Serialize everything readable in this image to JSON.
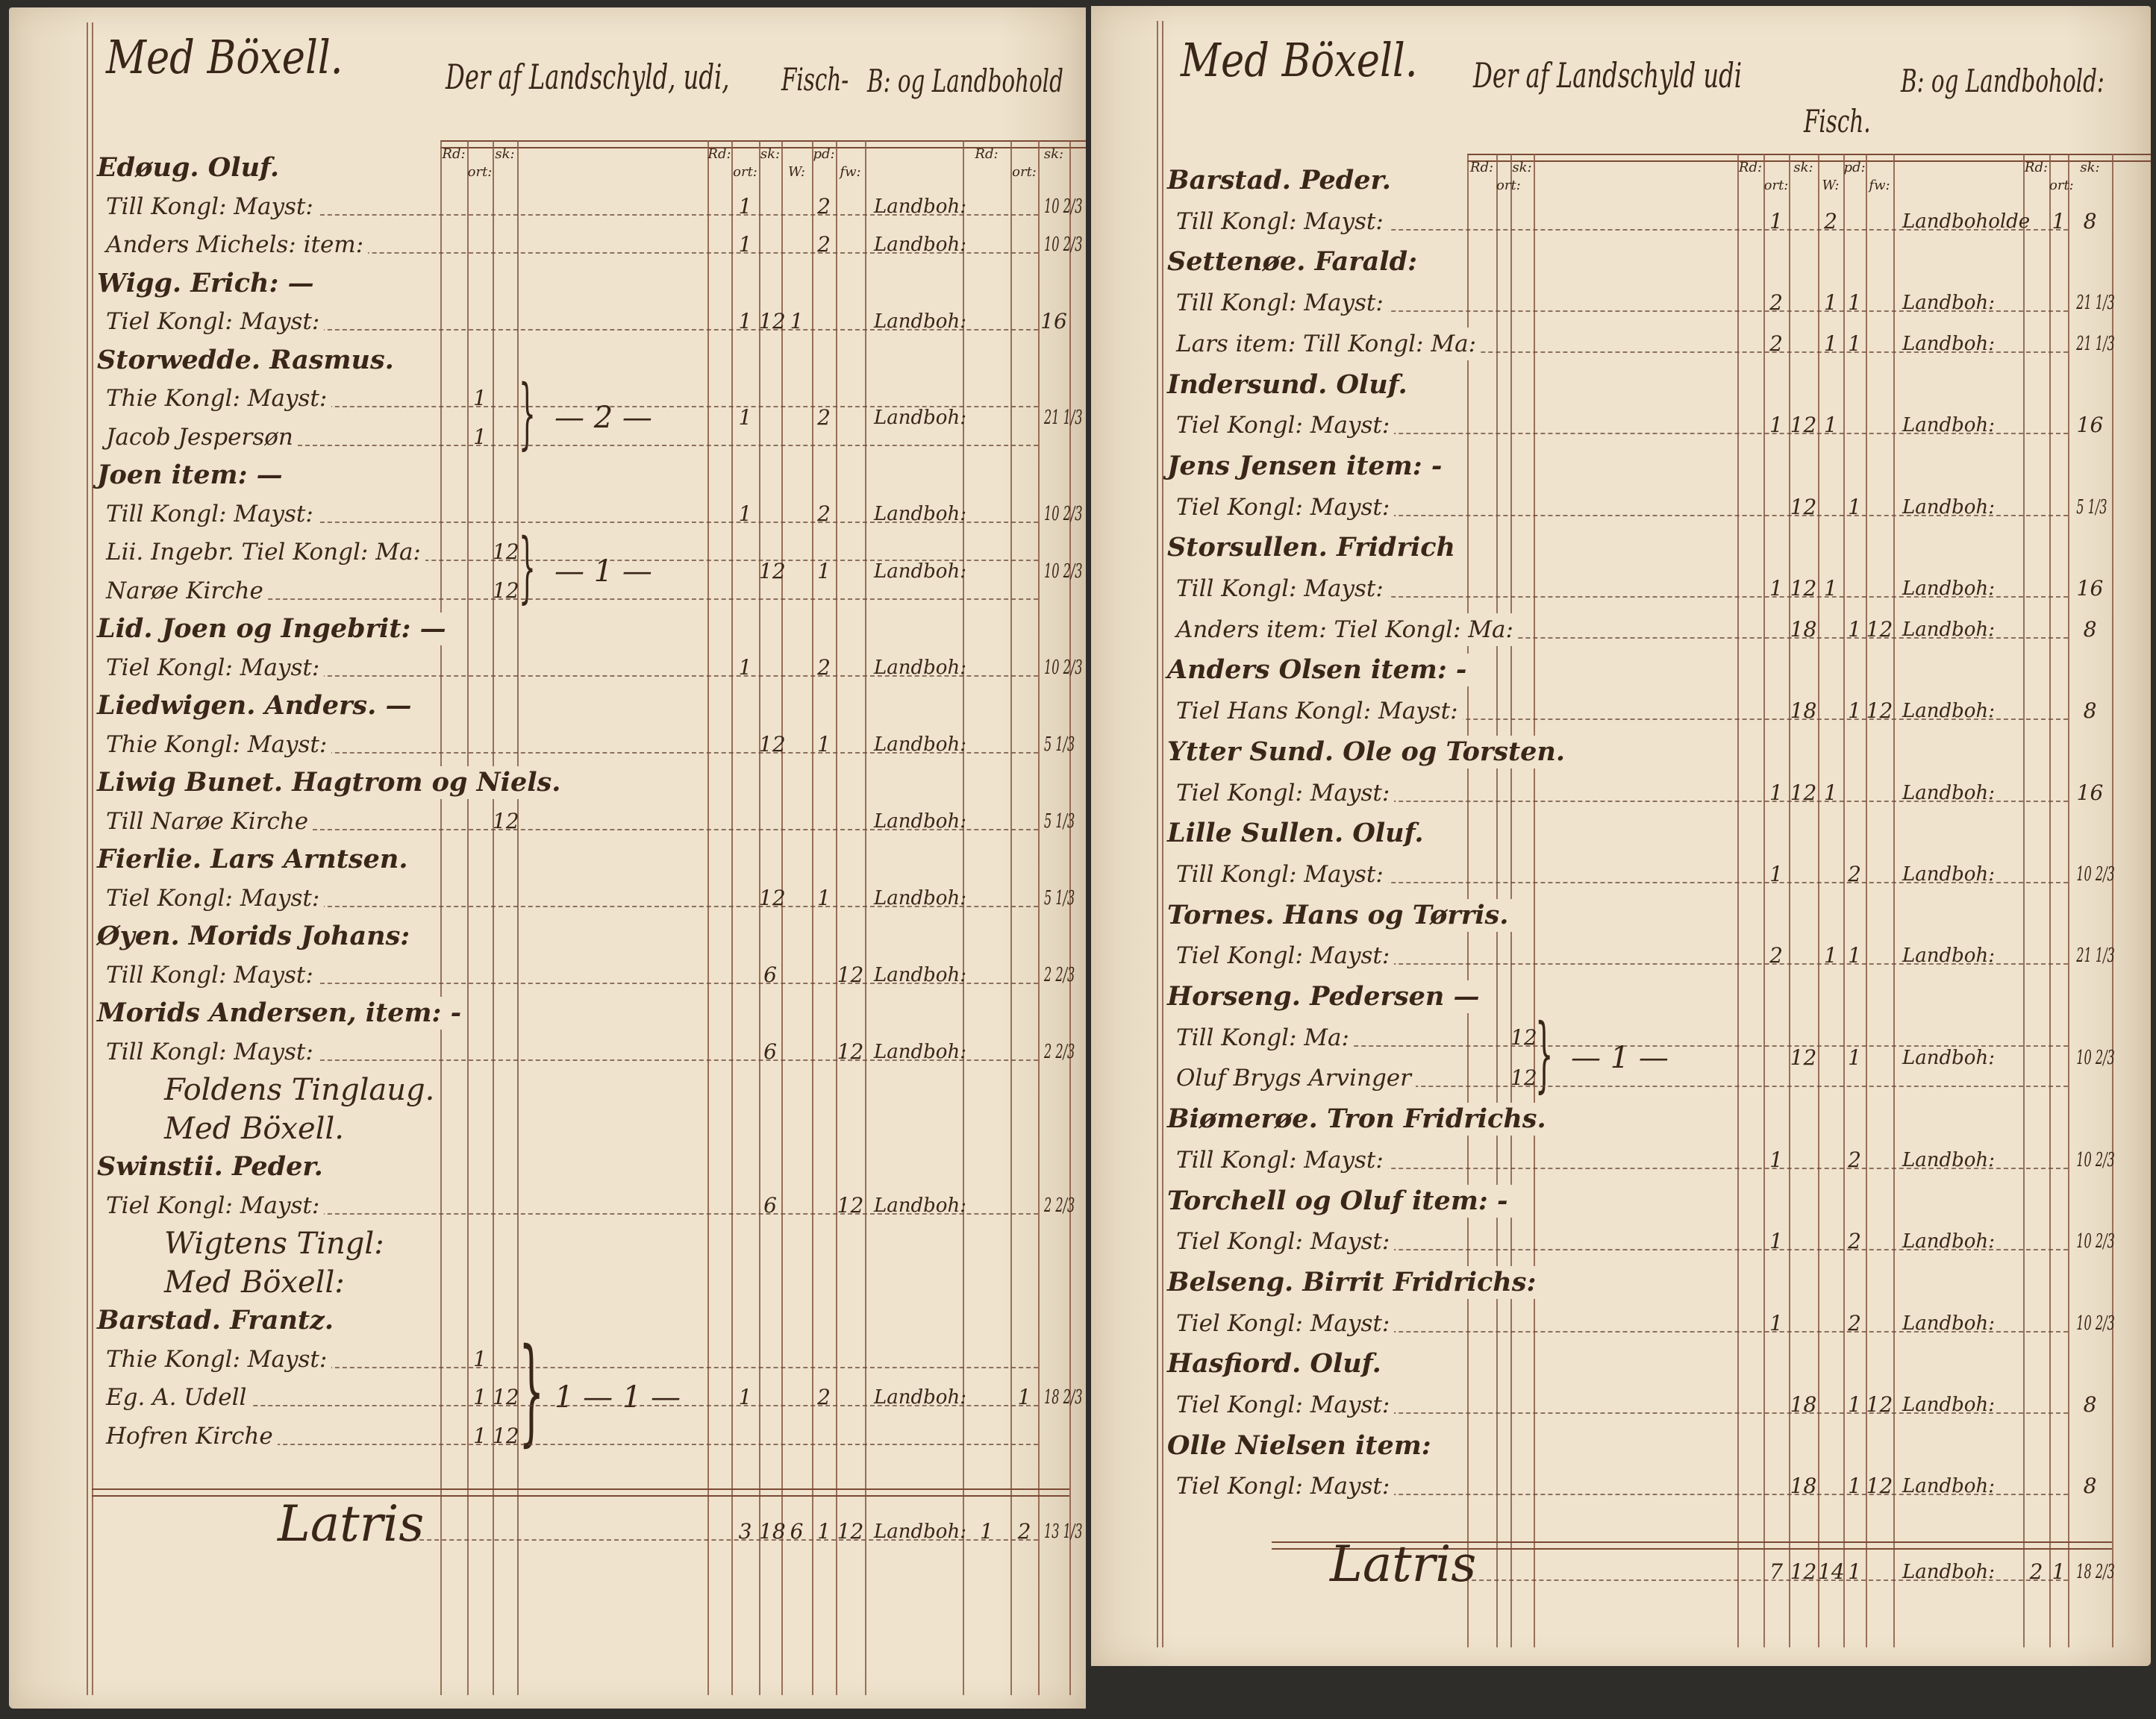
{
  "document_type": "handwritten ledger (two-page spread)",
  "colors": {
    "paper": "#efe3cd",
    "ink": "#3a2519",
    "rule": "#8a5a45",
    "background": "#2f2d2a"
  },
  "pages": [
    {
      "header": {
        "title": "Med Böxell.",
        "col_main": "Der af Landschyld, udi,",
        "col_fish": "Fisch-",
        "col_landbo": "B: og Landbohold"
      },
      "subheads": {
        "g1": [
          "Rd:",
          "ort:",
          "sk:"
        ],
        "g2": [
          "Rd:",
          "ort:",
          "sk:",
          "W:",
          "pd:",
          "fw:"
        ],
        "g3": [
          "Rd:",
          "ort:",
          "sk:"
        ]
      },
      "rows": [
        {
          "type": "place",
          "name": "Edøug. Oluf."
        },
        {
          "name": "Till Kongl: Mayst:",
          "g2": [
            "",
            "1",
            "",
            "",
            "2",
            ""
          ],
          "landbo": "Landboh:",
          "g3": [
            "",
            "",
            "10 2/3"
          ]
        },
        {
          "name": "Anders Michels: item:",
          "g2": [
            "",
            "1",
            "",
            "",
            "2",
            ""
          ],
          "landbo": "Landboh:",
          "g3": [
            "",
            "",
            "10 2/3"
          ]
        },
        {
          "type": "place",
          "name": "Wigg. Erich: —"
        },
        {
          "name": "Tiel Kongl: Mayst:",
          "g2": [
            "",
            "1",
            "12",
            "1",
            "",
            ""
          ],
          "landbo": "Landboh:",
          "g3": [
            "",
            "",
            "16"
          ]
        },
        {
          "type": "place",
          "name": "Storwedde. Rasmus."
        },
        {
          "name": "Thie Kongl: Mayst:",
          "g1": [
            "",
            "1",
            ""
          ],
          "mid": "— 2 —",
          "g2": [
            "",
            "1",
            "",
            "",
            "2",
            ""
          ],
          "landbo": "Landboh:",
          "g3": [
            "",
            "",
            "21 1/3"
          ]
        },
        {
          "name": "Jacob Jespersøn",
          "g1": [
            "",
            "1",
            ""
          ]
        },
        {
          "type": "place",
          "name": "Joen item: —"
        },
        {
          "name": "Till Kongl: Mayst:",
          "g2": [
            "",
            "1",
            "",
            "",
            "2",
            ""
          ],
          "landbo": "Landboh:",
          "g3": [
            "",
            "",
            "10 2/3"
          ]
        },
        {
          "name": "Lii. Ingebr. Tiel Kongl: Ma:",
          "g1": [
            "",
            "",
            "12"
          ],
          "mid": "— 1 —",
          "g2": [
            "",
            "",
            "12",
            "",
            "1",
            ""
          ],
          "landbo": "Landboh:",
          "g3": [
            "",
            "",
            "10 2/3"
          ]
        },
        {
          "name": "Narøe Kirche",
          "g1": [
            "",
            "",
            "12"
          ]
        },
        {
          "type": "place",
          "name": "Lid. Joen og Ingebrit: —"
        },
        {
          "name": "Tiel Kongl: Mayst:",
          "g2": [
            "",
            "1",
            "",
            "",
            "2",
            ""
          ],
          "landbo": "Landboh:",
          "g3": [
            "",
            "",
            "10 2/3"
          ]
        },
        {
          "type": "place",
          "name": "Liedwigen. Anders. —"
        },
        {
          "name": "Thie Kongl: Mayst:",
          "g2": [
            "",
            "",
            "12",
            "",
            "1",
            ""
          ],
          "landbo": "Landboh:",
          "g3": [
            "",
            "",
            "5 1/3"
          ]
        },
        {
          "type": "place",
          "name": "Liwig Bunet. Hagtrom og Niels."
        },
        {
          "name": "Till Narøe Kirche",
          "g1": [
            "",
            "",
            "12"
          ],
          "landbo": "Landboh:",
          "g3": [
            "",
            "",
            "5 1/3"
          ]
        },
        {
          "type": "place",
          "name": "Fierlie. Lars Arntsen."
        },
        {
          "name": "Tiel Kongl: Mayst:",
          "g2": [
            "",
            "",
            "12",
            "",
            "1",
            ""
          ],
          "landbo": "Landboh:",
          "g3": [
            "",
            "",
            "5 1/3"
          ]
        },
        {
          "type": "place",
          "name": "Øyen. Morids Johans:"
        },
        {
          "name": "Till Kongl: Mayst:",
          "g2": [
            "",
            "",
            "6",
            "",
            "",
            "12"
          ],
          "landbo": "Landboh:",
          "g3": [
            "",
            "",
            "2 2/3"
          ]
        },
        {
          "type": "place",
          "name": "Morids Andersen, item: -"
        },
        {
          "name": "Till Kongl: Mayst:",
          "g2": [
            "",
            "",
            "6",
            "",
            "",
            "12"
          ],
          "landbo": "Landboh:",
          "g3": [
            "",
            "",
            "2 2/3"
          ]
        },
        {
          "type": "heading",
          "name": "Foldens Tinglaug."
        },
        {
          "type": "heading",
          "name": "Med Böxell."
        },
        {
          "type": "place",
          "name": "Swinstii. Peder."
        },
        {
          "name": "Tiel Kongl: Mayst:",
          "g2": [
            "",
            "",
            "6",
            "",
            "",
            "12"
          ],
          "landbo": "Landboh:",
          "g3": [
            "",
            "",
            "2 2/3"
          ]
        },
        {
          "type": "heading",
          "name": "Wigtens Tingl:"
        },
        {
          "type": "heading",
          "name": "Med Böxell:"
        },
        {
          "type": "place",
          "name": "Barstad. Frantz."
        },
        {
          "name": "Thie Kongl: Mayst:",
          "g1": [
            "",
            "1",
            ""
          ],
          "mid": "1 — 1 —",
          "g2": [
            "",
            "1",
            "",
            "",
            "2",
            ""
          ],
          "landbo": "Landboh:",
          "g3": [
            "",
            "1",
            "18 2/3"
          ]
        },
        {
          "name": "Eg. A. Udell",
          "g1": [
            "",
            "1",
            "12"
          ]
        },
        {
          "name": "Hofren Kirche",
          "g1": [
            "",
            "1",
            "12"
          ]
        }
      ],
      "total": {
        "name": "Latris",
        "g2": [
          "",
          "3",
          "18",
          "6",
          "1",
          "12"
        ],
        "landbo": "Landboh:",
        "g3": [
          "1",
          "2",
          "13 1/3"
        ]
      }
    },
    {
      "header": {
        "title": "Med Böxell.",
        "col_main": "Der af Landschyld udi",
        "col_fish": "Fisch.",
        "col_landbo": "B: og Landbohold:"
      },
      "subheads": {
        "g1": [
          "Rd:",
          "ort:",
          "sk:"
        ],
        "g2": [
          "Rd:",
          "ort:",
          "sk:",
          "W:",
          "pd:",
          "fw:"
        ],
        "g3": [
          "Rd:",
          "ort:",
          "sk:"
        ]
      },
      "rows": [
        {
          "type": "place",
          "name": "Barstad. Peder."
        },
        {
          "name": "Till Kongl: Mayst:",
          "g2": [
            "",
            "1",
            "",
            "2",
            "",
            ""
          ],
          "landbo": "Landboholde",
          "g3": [
            "",
            "1",
            "8"
          ]
        },
        {
          "type": "place",
          "name": "Settenøe. Farald:"
        },
        {
          "name": "Till Kongl: Mayst:",
          "g2": [
            "",
            "2",
            "",
            "1",
            "1",
            ""
          ],
          "landbo": "Landboh:",
          "g3": [
            "",
            "",
            "21 1/3"
          ]
        },
        {
          "name": "Lars item: Till Kongl: Ma:",
          "g2": [
            "",
            "2",
            "",
            "1",
            "1",
            ""
          ],
          "landbo": "Landboh:",
          "g3": [
            "",
            "",
            "21 1/3"
          ]
        },
        {
          "type": "place",
          "name": "Indersund. Oluf."
        },
        {
          "name": "Tiel Kongl: Mayst:",
          "g2": [
            "",
            "1",
            "12",
            "1",
            "",
            ""
          ],
          "landbo": "Landboh:",
          "g3": [
            "",
            "",
            "16"
          ]
        },
        {
          "type": "place",
          "name": "Jens Jensen item: -"
        },
        {
          "name": "Tiel Kongl: Mayst:",
          "g2": [
            "",
            "",
            "12",
            "",
            "1",
            ""
          ],
          "landbo": "Landboh:",
          "g3": [
            "",
            "",
            "5 1/3"
          ]
        },
        {
          "type": "place",
          "name": "Storsullen. Fridrich"
        },
        {
          "name": "Till Kongl: Mayst:",
          "g2": [
            "",
            "1",
            "12",
            "1",
            "",
            ""
          ],
          "landbo": "Landboh:",
          "g3": [
            "",
            "",
            "16"
          ]
        },
        {
          "name": "Anders item: Tiel Kongl: Ma:",
          "g2": [
            "",
            "",
            "18",
            "",
            "1",
            "12"
          ],
          "landbo": "Landboh:",
          "g3": [
            "",
            "",
            "8"
          ]
        },
        {
          "type": "place",
          "name": "Anders Olsen item: -"
        },
        {
          "name": "Tiel Hans Kongl: Mayst:",
          "g2": [
            "",
            "",
            "18",
            "",
            "1",
            "12"
          ],
          "landbo": "Landboh:",
          "g3": [
            "",
            "",
            "8"
          ]
        },
        {
          "type": "place",
          "name": "Ytter Sund. Ole og Torsten."
        },
        {
          "name": "Tiel Kongl: Mayst:",
          "g2": [
            "",
            "1",
            "12",
            "1",
            "",
            ""
          ],
          "landbo": "Landboh:",
          "g3": [
            "",
            "",
            "16"
          ]
        },
        {
          "type": "place",
          "name": "Lille Sullen. Oluf."
        },
        {
          "name": "Till Kongl: Mayst:",
          "g2": [
            "",
            "1",
            "",
            "",
            "2",
            ""
          ],
          "landbo": "Landboh:",
          "g3": [
            "",
            "",
            "10 2/3"
          ]
        },
        {
          "type": "place",
          "name": "Tornes. Hans og Tørris."
        },
        {
          "name": "Tiel Kongl: Mayst:",
          "g2": [
            "",
            "2",
            "",
            "1",
            "1",
            ""
          ],
          "landbo": "Landboh:",
          "g3": [
            "",
            "",
            "21 1/3"
          ]
        },
        {
          "type": "place",
          "name": "Horseng. Pedersen —"
        },
        {
          "name": "Till Kongl: Ma:",
          "g1": [
            "",
            "",
            "12"
          ],
          "mid": "— 1 —",
          "g2": [
            "",
            "",
            "12",
            "",
            "1",
            ""
          ],
          "landbo": "Landboh:",
          "g3": [
            "",
            "",
            "10 2/3"
          ]
        },
        {
          "name": "Oluf Brygs Arvinger",
          "g1": [
            "",
            "",
            "12"
          ]
        },
        {
          "type": "place",
          "name": "Biømerøe. Tron Fridrichs."
        },
        {
          "name": "Till Kongl: Mayst:",
          "g2": [
            "",
            "1",
            "",
            "",
            "2",
            ""
          ],
          "landbo": "Landboh:",
          "g3": [
            "",
            "",
            "10 2/3"
          ]
        },
        {
          "type": "place",
          "name": "Torchell og Oluf item: -"
        },
        {
          "name": "Tiel Kongl: Mayst:",
          "g2": [
            "",
            "1",
            "",
            "",
            "2",
            ""
          ],
          "landbo": "Landboh:",
          "g3": [
            "",
            "",
            "10 2/3"
          ]
        },
        {
          "type": "place",
          "name": "Belseng. Birrit Fridrichs:"
        },
        {
          "name": "Tiel Kongl: Mayst:",
          "g2": [
            "",
            "1",
            "",
            "",
            "2",
            ""
          ],
          "landbo": "Landboh:",
          "g3": [
            "",
            "",
            "10 2/3"
          ]
        },
        {
          "type": "place",
          "name": "Hasfiord. Oluf."
        },
        {
          "name": "Tiel Kongl: Mayst:",
          "g2": [
            "",
            "",
            "18",
            "",
            "1",
            "12"
          ],
          "landbo": "Landboh:",
          "g3": [
            "",
            "",
            "8"
          ]
        },
        {
          "type": "place",
          "name": "Olle Nielsen item:"
        },
        {
          "name": "Tiel Kongl: Mayst:",
          "g2": [
            "",
            "",
            "18",
            "",
            "1",
            "12"
          ],
          "landbo": "Landboh:",
          "g3": [
            "",
            "",
            "8"
          ]
        }
      ],
      "total": {
        "name": "Latris",
        "g2": [
          "",
          "7",
          "12",
          "14",
          "1",
          ""
        ],
        "landbo": "Landboh:",
        "g3": [
          "2",
          "1",
          "18 2/3"
        ]
      }
    }
  ]
}
